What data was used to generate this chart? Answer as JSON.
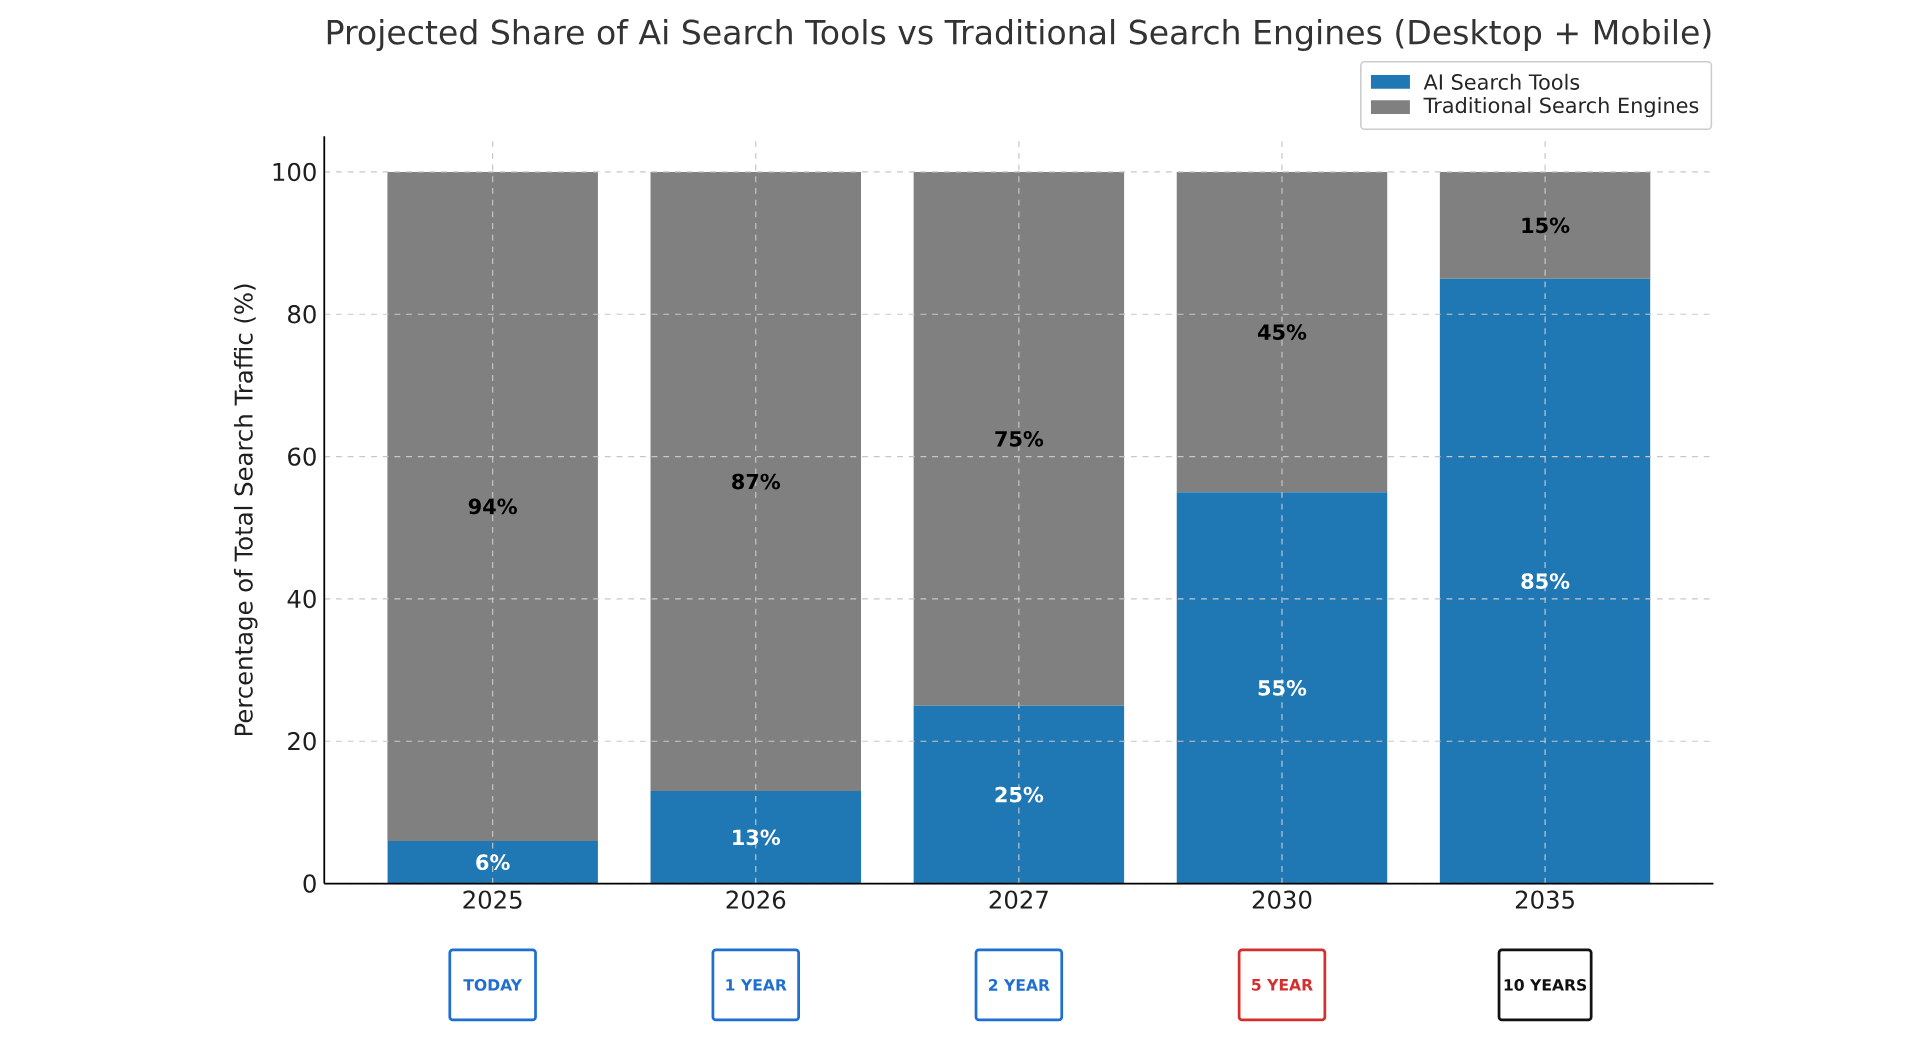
{
  "chart_data": {
    "type": "bar",
    "title": "Projected Share of Ai Search Tools vs Traditional Search Engines (Desktop + Mobile)",
    "ylabel": "Percentage of Total Search Traffic (%)",
    "categories": [
      "2025",
      "2026",
      "2027",
      "2030",
      "2035"
    ],
    "series": [
      {
        "name": "AI Search Tools",
        "color": "#1f77b4",
        "values": [
          6,
          13,
          25,
          55,
          85
        ],
        "value_labels": [
          "6%",
          "13%",
          "25%",
          "55%",
          "85%"
        ]
      },
      {
        "name": "Traditional Search Engines",
        "color": "#808080",
        "values": [
          94,
          87,
          75,
          45,
          15
        ],
        "value_labels": [
          "94%",
          "87%",
          "75%",
          "45%",
          "15%"
        ]
      }
    ],
    "stacked": true,
    "ylim": [
      0,
      105
    ],
    "yticks": [
      0,
      20,
      40,
      60,
      80,
      100
    ],
    "grid": true,
    "legend": "top right",
    "annotations": [
      "TODAY",
      "1 YEAR",
      "2 YEAR",
      "5 YEAR",
      "10 YEARS"
    ]
  }
}
